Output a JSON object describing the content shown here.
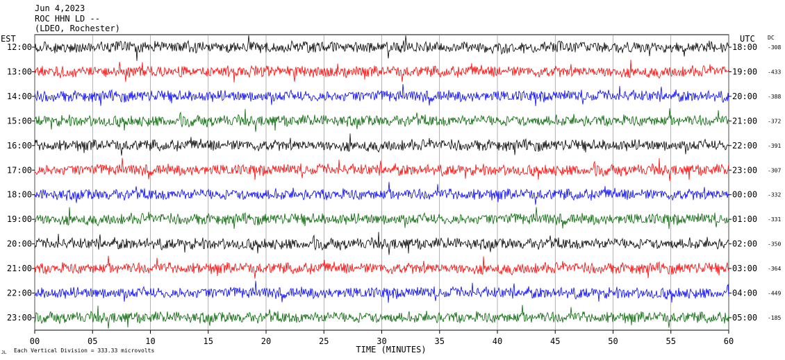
{
  "header": {
    "line1": "Jun 4,2023",
    "line2": "ROC HHN LD --",
    "line3": "(LDEO, Rochester)"
  },
  "left_axis_label": "EST",
  "right_axis_label": "UTC",
  "dc_label": "DC",
  "footer": {
    "scale_note": "Each Vertical Division =  333.33 microvolts",
    "corner_mark": "JL"
  },
  "chart_data": {
    "type": "line",
    "xlabel": "TIME (MINUTES)",
    "xlim": [
      0,
      60
    ],
    "x_ticks": [
      "00",
      "05",
      "10",
      "15",
      "20",
      "25",
      "30",
      "35",
      "40",
      "45",
      "50",
      "55",
      "60"
    ],
    "grid": "vertical",
    "trace_colors": [
      "#000000",
      "#ff0000",
      "#0000ff",
      "#006400"
    ],
    "rows": [
      {
        "est": "12:00",
        "utc": "18:00",
        "dc": "-308"
      },
      {
        "est": "13:00",
        "utc": "19:00",
        "dc": "-433"
      },
      {
        "est": "14:00",
        "utc": "20:00",
        "dc": "-388"
      },
      {
        "est": "15:00",
        "utc": "21:00",
        "dc": "-372"
      },
      {
        "est": "16:00",
        "utc": "22:00",
        "dc": "-391"
      },
      {
        "est": "17:00",
        "utc": "23:00",
        "dc": "-307"
      },
      {
        "est": "18:00",
        "utc": "00:00",
        "dc": "-332"
      },
      {
        "est": "19:00",
        "utc": "01:00",
        "dc": "-331"
      },
      {
        "est": "20:00",
        "utc": "02:00",
        "dc": "-350"
      },
      {
        "est": "21:00",
        "utc": "03:00",
        "dc": "-364"
      },
      {
        "est": "22:00",
        "utc": "04:00",
        "dc": "-449"
      },
      {
        "est": "23:00",
        "utc": "05:00",
        "dc": "-185"
      }
    ]
  }
}
